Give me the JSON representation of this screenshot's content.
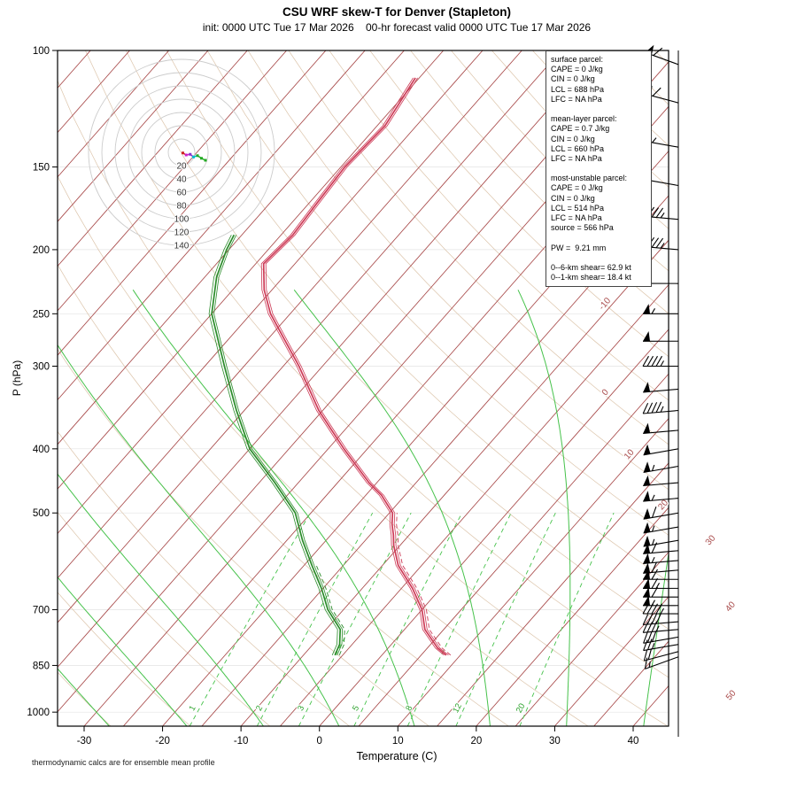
{
  "title": "CSU WRF skew-T for Denver (Stapleton)",
  "subtitle": "init: 0000 UTC Tue 17 Mar 2026    00-hr forecast valid 0000 UTC Tue 17 Mar 2026",
  "footer": "thermodynamic calcs are for ensemble mean profile",
  "axes": {
    "x_label": "Temperature (C)",
    "y_label": "P (hPa)"
  },
  "parcel_box": {
    "lines": [
      "surface parcel:",
      "CAPE = 0 J/kg",
      "CIN = 0 J/kg",
      "LCL = 688 hPa",
      "LFC = NA hPa",
      "",
      "mean-layer parcel:",
      "CAPE = 0.7 J/kg",
      "CIN = 0 J/kg",
      "LCL = 660 hPa",
      "LFC = NA hPa",
      "",
      "most-unstable parcel:",
      "CAPE = 0 J/kg",
      "CIN = 0 J/kg",
      "LCL = 514 hPa",
      "LFC = NA hPa",
      "source = 566 hPa",
      "",
      "PW =  9.21 mm",
      "",
      "0--6-km shear= 62.9 kt",
      "0--1-km shear= 18.4 kt"
    ]
  },
  "chart_data": {
    "type": "line",
    "variant": "skew-t-log-p",
    "title": "CSU WRF skew-T for Denver (Stapleton)",
    "xlabel": "Temperature (C)",
    "ylabel": "P (hPa)",
    "pressure_axis_range_hpa": [
      100,
      1050
    ],
    "x_ticks": [
      -30,
      -20,
      -10,
      0,
      10,
      20,
      30,
      40
    ],
    "pressure_ticks": [
      100,
      150,
      200,
      250,
      300,
      400,
      500,
      700,
      850,
      1000
    ],
    "isotherm_labels": [
      -10,
      0,
      10,
      20,
      30,
      40,
      50
    ],
    "mixing_ratio_g_kg": [
      1,
      2,
      3,
      5,
      8,
      12,
      20
    ],
    "moist_adiabat_start_c": [
      -30,
      -20,
      -10,
      0,
      10,
      20,
      30,
      40
    ],
    "temperature_profile_p_c": [
      [
        820,
        8.2
      ],
      [
        800,
        6.3
      ],
      [
        750,
        2.6
      ],
      [
        700,
        0.0
      ],
      [
        650,
        -3.6
      ],
      [
        600,
        -8.0
      ],
      [
        560,
        -10.8
      ],
      [
        540,
        -12.0
      ],
      [
        520,
        -13.4
      ],
      [
        500,
        -14.6
      ],
      [
        470,
        -18.0
      ],
      [
        450,
        -21.0
      ],
      [
        400,
        -28.0
      ],
      [
        350,
        -35.5
      ],
      [
        300,
        -43.0
      ],
      [
        270,
        -48.5
      ],
      [
        250,
        -52.5
      ],
      [
        230,
        -56.0
      ],
      [
        210,
        -59.0
      ],
      [
        190,
        -58.5
      ],
      [
        170,
        -59.0
      ],
      [
        150,
        -59.5
      ],
      [
        130,
        -59.0
      ],
      [
        110,
        -60.5
      ]
    ],
    "dewpoint_profile_p_c": [
      [
        820,
        -6.0
      ],
      [
        790,
        -6.6
      ],
      [
        750,
        -8.2
      ],
      [
        700,
        -12.0
      ],
      [
        650,
        -15.2
      ],
      [
        600,
        -19.0
      ],
      [
        550,
        -23.0
      ],
      [
        500,
        -27.0
      ],
      [
        450,
        -33.0
      ],
      [
        400,
        -40.0
      ],
      [
        350,
        -46.0
      ],
      [
        300,
        -52.5
      ],
      [
        250,
        -60.0
      ],
      [
        220,
        -63.5
      ],
      [
        200,
        -65.3
      ],
      [
        190,
        -66.0
      ]
    ],
    "wind_barbs_kt": [
      [
        105,
        290,
        60
      ],
      [
        120,
        285,
        60
      ],
      [
        140,
        280,
        55
      ],
      [
        160,
        280,
        50
      ],
      [
        180,
        275,
        45
      ],
      [
        200,
        275,
        45
      ],
      [
        225,
        270,
        50
      ],
      [
        250,
        270,
        55
      ],
      [
        275,
        270,
        50
      ],
      [
        300,
        270,
        45
      ],
      [
        325,
        265,
        50
      ],
      [
        350,
        265,
        45
      ],
      [
        375,
        265,
        50
      ],
      [
        400,
        260,
        50
      ],
      [
        425,
        260,
        55
      ],
      [
        450,
        265,
        50
      ],
      [
        475,
        265,
        55
      ],
      [
        500,
        260,
        60
      ],
      [
        525,
        260,
        55
      ],
      [
        550,
        260,
        55
      ],
      [
        570,
        265,
        60
      ],
      [
        590,
        265,
        55
      ],
      [
        610,
        265,
        60
      ],
      [
        630,
        270,
        60
      ],
      [
        650,
        270,
        65
      ],
      [
        670,
        270,
        60
      ],
      [
        690,
        270,
        55
      ],
      [
        710,
        270,
        45
      ],
      [
        730,
        265,
        40
      ],
      [
        750,
        265,
        35
      ],
      [
        770,
        260,
        30
      ],
      [
        790,
        260,
        25
      ],
      [
        810,
        255,
        20
      ],
      [
        825,
        250,
        15
      ]
    ],
    "hodograph": {
      "ring_labels_kt": [
        20,
        40,
        60,
        80,
        100,
        120,
        140
      ],
      "ring_step_kt": 20,
      "trace_uv_kt": [
        [
          2,
          -1
        ],
        [
          7,
          -4
        ],
        [
          13,
          -3
        ],
        [
          18,
          -7
        ],
        [
          24,
          -5
        ],
        [
          30,
          -9
        ],
        [
          36,
          -12
        ]
      ],
      "segment_colors": [
        "#cc2222",
        "#cc22cc",
        "#8833cc",
        "#00bbcc",
        "#22aa22",
        "#22aa22"
      ]
    },
    "colors": {
      "isotherm": "#a84a4a",
      "dry_adiabat": "#dcc4aa",
      "moist_adiabat": "#46c24b",
      "mixing_ratio": "#46c24b",
      "temperature": "#cd3b57",
      "dewpoint": "#2b8c2b",
      "barb": "#000000",
      "hodograph_ring": "#cccccc",
      "frame": "#000000"
    }
  }
}
